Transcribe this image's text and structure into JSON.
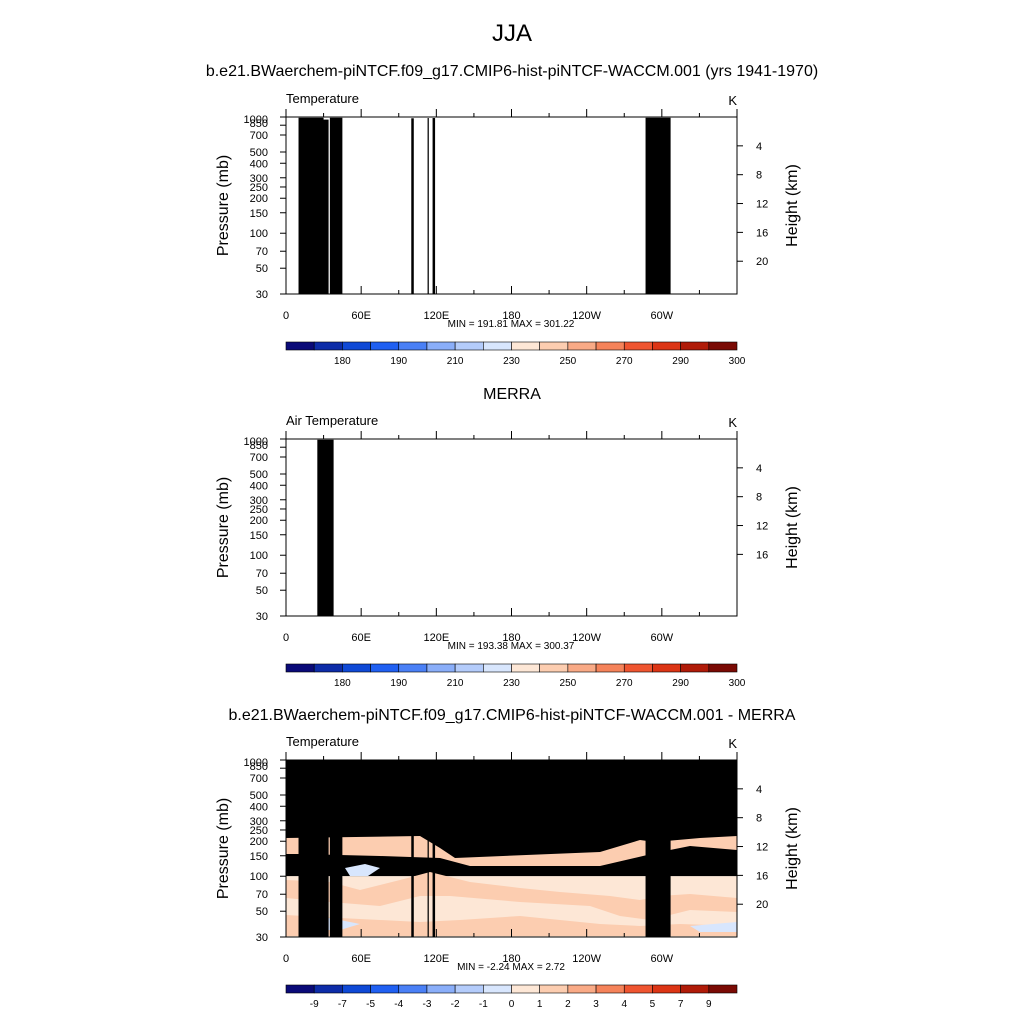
{
  "title": "JJA",
  "chart_data": [
    {
      "type": "heatmap",
      "title": "b.e21.BWaerchem-piNTCF.f09_g17.CMIP6-hist-piNTCF-WACCM.001 (yrs 1941-1970)",
      "subtitle_left": "Temperature",
      "units": "K",
      "ylabel_left": "Pressure (mb)",
      "ylabel_right": "Height (km)",
      "x_ticks": [
        "0",
        "60E",
        "120E",
        "180",
        "120W",
        "60W"
      ],
      "p_ticks": [
        "30",
        "50",
        "70",
        "100",
        "150",
        "200",
        "250",
        "300",
        "400",
        "500",
        "700",
        "850",
        "1000"
      ],
      "height_ticks": [
        "4",
        "8",
        "12",
        "16",
        "20"
      ],
      "stats": "MIN = 191.81  MAX = 301.22",
      "colorbar_labels": [
        "180",
        "190",
        "210",
        "230",
        "250",
        "270",
        "290",
        "300"
      ],
      "ylim_mb": [
        1000,
        30
      ],
      "data_top_mb": 30
    },
    {
      "type": "heatmap",
      "title": "MERRA",
      "subtitle_left": "Air Temperature",
      "units": "K",
      "ylabel_left": "Pressure (mb)",
      "ylabel_right": "Height (km)",
      "x_ticks": [
        "0",
        "60E",
        "120E",
        "180",
        "120W",
        "60W"
      ],
      "p_ticks": [
        "30",
        "50",
        "70",
        "100",
        "150",
        "200",
        "250",
        "300",
        "400",
        "500",
        "700",
        "850",
        "1000"
      ],
      "height_ticks": [
        "4",
        "8",
        "12",
        "16"
      ],
      "stats": "MIN = 193.38  MAX = 300.37",
      "colorbar_labels": [
        "180",
        "190",
        "210",
        "230",
        "250",
        "270",
        "290",
        "300"
      ],
      "ylim_mb": [
        1000,
        30
      ],
      "data_top_mb": 100
    },
    {
      "type": "heatmap",
      "title": "b.e21.BWaerchem-piNTCF.f09_g17.CMIP6-hist-piNTCF-WACCM.001 - MERRA",
      "subtitle_left": "Temperature",
      "units": "K",
      "ylabel_left": "Pressure (mb)",
      "ylabel_right": "Height (km)",
      "x_ticks": [
        "0",
        "60E",
        "120E",
        "180",
        "120W",
        "60W"
      ],
      "p_ticks": [
        "30",
        "50",
        "70",
        "100",
        "150",
        "200",
        "250",
        "300",
        "400",
        "500",
        "700",
        "850",
        "1000"
      ],
      "height_ticks": [
        "4",
        "8",
        "12",
        "16",
        "20"
      ],
      "stats": "MIN =  -2.24  MAX =   2.72",
      "colorbar_labels": [
        "-9",
        "-7",
        "-5",
        "-4",
        "-3",
        "-2",
        "-1",
        "0",
        "1",
        "2",
        "3",
        "4",
        "5",
        "7",
        "9"
      ],
      "ylim_mb": [
        1000,
        30
      ],
      "data_top_mb": 100
    }
  ],
  "colors": {
    "temperature_scale": [
      "#0a0a78",
      "#0d2ca8",
      "#0f49d6",
      "#2060f2",
      "#4a80f6",
      "#8aaef9",
      "#b4ccfb",
      "#d8e6fd",
      "#fde7d6",
      "#fccdb0",
      "#f9aa86",
      "#f5835a",
      "#ef5530",
      "#dc3515",
      "#b01b08",
      "#7a0a04"
    ],
    "difference_scale": [
      "#0a0a78",
      "#0d2ca8",
      "#0f49d6",
      "#2060f2",
      "#4a80f6",
      "#8aaef9",
      "#b4ccfb",
      "#d8e6fd",
      "#fde7d6",
      "#fccdb0",
      "#f9aa86",
      "#f5835a",
      "#ef5530",
      "#dc3515",
      "#b01b08",
      "#7a0a04"
    ],
    "missing": "#000000"
  }
}
